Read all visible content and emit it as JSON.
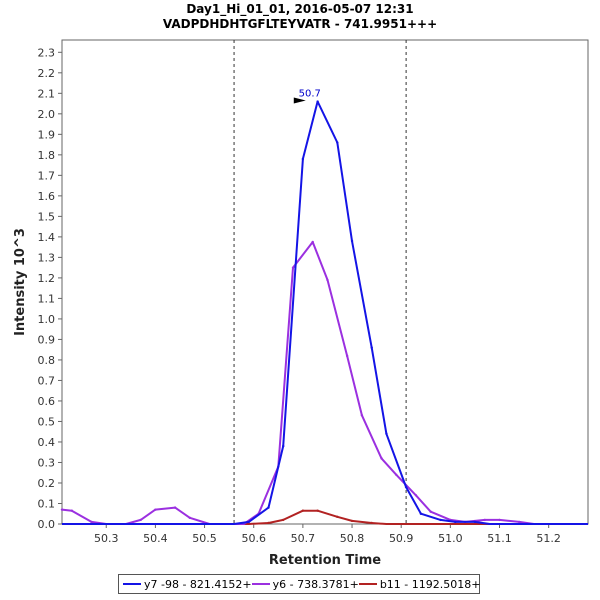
{
  "chart_data": {
    "type": "line",
    "title_line1": "Day1_Hi_01_01, 2016-05-07 12:31",
    "title_line2": "VADPDHDHTGFLTEYVATR - 741.9951+++",
    "xlabel": "Retention Time",
    "ylabel": "Intensity 10^3",
    "xlim": [
      50.21,
      51.28
    ],
    "ylim": [
      0,
      2.36
    ],
    "x_ticks": [
      50.3,
      50.4,
      50.5,
      50.6,
      50.7,
      50.8,
      50.9,
      51.0,
      51.1,
      51.2
    ],
    "x_tick_labels": [
      "50.3",
      "50.4",
      "50.5",
      "50.6",
      "50.7",
      "50.8",
      "50.9",
      "51.0",
      "51.1",
      "51.2"
    ],
    "y_ticks": [
      0.0,
      0.1,
      0.2,
      0.3,
      0.4,
      0.5,
      0.6,
      0.7,
      0.8,
      0.9,
      1.0,
      1.1,
      1.2,
      1.3,
      1.4,
      1.5,
      1.6,
      1.7,
      1.8,
      1.9,
      2.0,
      2.1,
      2.2,
      2.3
    ],
    "y_tick_labels": [
      "0.0",
      "0.1",
      "0.2",
      "0.3",
      "0.4",
      "0.5",
      "0.6",
      "0.7",
      "0.8",
      "0.9",
      "1.0",
      "1.1",
      "1.2",
      "1.3",
      "1.4",
      "1.5",
      "1.6",
      "1.7",
      "1.8",
      "1.9",
      "2.0",
      "2.1",
      "2.2",
      "2.3"
    ],
    "integration_bounds": [
      50.56,
      50.91
    ],
    "peak_annotation": {
      "x": 50.71,
      "y": 2.06,
      "label": "50.7",
      "color": "#0000cc"
    },
    "series": [
      {
        "name": "y7 -98 - 821.4152+",
        "color": "#1414e6",
        "x": [
          50.21,
          50.24,
          50.28,
          50.31,
          50.35,
          50.38,
          50.42,
          50.45,
          50.49,
          50.52,
          50.56,
          50.59,
          50.63,
          50.66,
          50.7,
          50.73,
          50.77,
          50.8,
          50.84,
          50.87,
          50.91,
          50.94,
          50.98,
          51.01,
          51.05,
          51.08,
          51.12,
          51.15,
          51.19,
          51.28
        ],
        "y": [
          0,
          0,
          0,
          0,
          0,
          0,
          0,
          0,
          0,
          0,
          0,
          0.01,
          0.08,
          0.38,
          1.78,
          2.06,
          1.86,
          1.38,
          0.86,
          0.44,
          0.18,
          0.05,
          0.02,
          0.01,
          0.01,
          0,
          0,
          0,
          0,
          0
        ]
      },
      {
        "name": "y6 - 738.3781+",
        "color": "#9b30e0",
        "x": [
          50.21,
          50.23,
          50.27,
          50.3,
          50.34,
          50.37,
          50.4,
          50.44,
          50.47,
          50.51,
          50.54,
          50.58,
          50.61,
          50.65,
          50.68,
          50.72,
          50.75,
          50.79,
          50.82,
          50.86,
          50.89,
          50.93,
          50.96,
          51.0,
          51.03,
          51.07,
          51.1,
          51.14,
          51.17,
          51.21,
          51.28
        ],
        "y": [
          0.07,
          0.065,
          0.01,
          0,
          0,
          0.02,
          0.07,
          0.08,
          0.03,
          0,
          0,
          0,
          0.05,
          0.28,
          1.25,
          1.375,
          1.19,
          0.82,
          0.53,
          0.32,
          0.24,
          0.14,
          0.06,
          0.02,
          0.01,
          0.02,
          0.02,
          0.01,
          0,
          0,
          0
        ]
      },
      {
        "name": "b11 - 1192.5018+",
        "color": "#b22222",
        "x": [
          50.21,
          50.59,
          50.63,
          50.66,
          50.7,
          50.73,
          50.77,
          50.8,
          50.84,
          50.87,
          50.91,
          51.28
        ],
        "y": [
          0,
          0,
          0.005,
          0.02,
          0.065,
          0.065,
          0.035,
          0.015,
          0.005,
          0,
          0,
          0
        ]
      }
    ]
  }
}
